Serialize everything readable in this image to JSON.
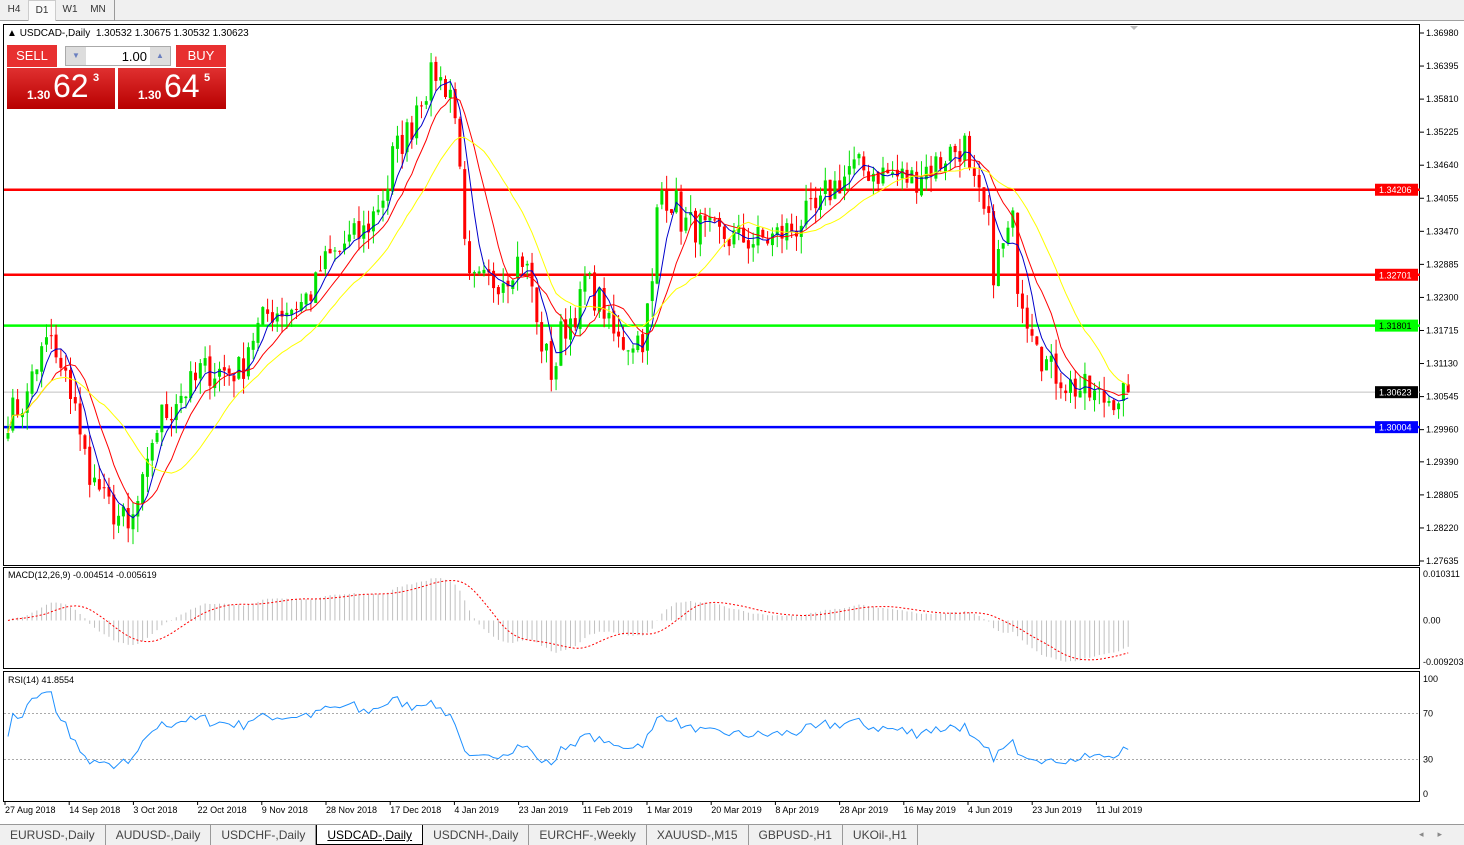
{
  "timeframes": [
    "H4",
    "D1",
    "W1",
    "MN"
  ],
  "active_timeframe": "D1",
  "chart": {
    "title": "USDCAD-,Daily",
    "ohlc": "1.30532 1.30675 1.30532 1.30623",
    "trade": {
      "sell_label": "SELL",
      "buy_label": "BUY",
      "lot": "1.00",
      "sell_prefix": "1.30",
      "sell_big": "62",
      "sell_sup": "3",
      "buy_prefix": "1.30",
      "buy_big": "64",
      "buy_sup": "5"
    }
  },
  "chart_data": {
    "type": "candlestick",
    "symbol": "USDCAD-",
    "timeframe": "Daily",
    "ylim": [
      1.27635,
      1.3698
    ],
    "price_ticks": [
      "1.36980",
      "1.36395",
      "1.35810",
      "1.35225",
      "1.34640",
      "1.34055",
      "1.33470",
      "1.32885",
      "1.32300",
      "1.31715",
      "1.31130",
      "1.30545",
      "1.29960",
      "1.29390",
      "1.28805",
      "1.28220",
      "1.27635"
    ],
    "current_price": "1.30623",
    "levels": [
      {
        "price": "1.34206",
        "color": "#ff0000"
      },
      {
        "price": "1.32701",
        "color": "#ff0000"
      },
      {
        "price": "1.31801",
        "color": "#00ff00"
      },
      {
        "price": "1.30004",
        "color": "#0000ff"
      }
    ],
    "moving_averages": [
      {
        "period": 5,
        "color": "#0000cc"
      },
      {
        "period": 10,
        "color": "#ff0000"
      },
      {
        "period": 20,
        "color": "#ffff00"
      }
    ],
    "date_labels": [
      "27 Aug 2018",
      "14 Sep 2018",
      "3 Oct 2018",
      "22 Oct 2018",
      "9 Nov 2018",
      "28 Nov 2018",
      "17 Dec 2018",
      "4 Jan 2019",
      "23 Jan 2019",
      "11 Feb 2019",
      "1 Mar 2019",
      "20 Mar 2019",
      "8 Apr 2019",
      "28 Apr 2019",
      "16 May 2019",
      "4 Jun 2019",
      "23 Jun 2019",
      "11 Jul 2019"
    ],
    "start_date": "2018-08-27",
    "end_date": "2019-07-18",
    "close_path": [
      [
        "2018-08-27",
        1.302
      ],
      [
        "2018-08-31",
        1.305
      ],
      [
        "2018-09-07",
        1.316
      ],
      [
        "2018-09-14",
        1.305
      ],
      [
        "2018-09-20",
        1.29
      ],
      [
        "2018-10-01",
        1.281
      ],
      [
        "2018-10-05",
        1.292
      ],
      [
        "2018-10-10",
        1.302
      ],
      [
        "2018-10-22",
        1.31
      ],
      [
        "2018-11-01",
        1.31
      ],
      [
        "2018-11-09",
        1.32
      ],
      [
        "2018-11-20",
        1.322
      ],
      [
        "2018-11-28",
        1.33
      ],
      [
        "2018-12-10",
        1.336
      ],
      [
        "2018-12-17",
        1.348
      ],
      [
        "2018-12-28",
        1.363
      ],
      [
        "2019-01-02",
        1.36
      ],
      [
        "2019-01-08",
        1.325
      ],
      [
        "2019-01-15",
        1.326
      ],
      [
        "2019-01-23",
        1.33
      ],
      [
        "2019-01-31",
        1.31
      ],
      [
        "2019-02-05",
        1.318
      ],
      [
        "2019-02-11",
        1.326
      ],
      [
        "2019-02-20",
        1.315
      ],
      [
        "2019-02-27",
        1.316
      ],
      [
        "2019-03-05",
        1.342
      ],
      [
        "2019-03-12",
        1.336
      ],
      [
        "2019-03-20",
        1.334
      ],
      [
        "2019-04-01",
        1.333
      ],
      [
        "2019-04-08",
        1.334
      ],
      [
        "2019-04-18",
        1.338
      ],
      [
        "2019-04-28",
        1.346
      ],
      [
        "2019-05-08",
        1.345
      ],
      [
        "2019-05-16",
        1.344
      ],
      [
        "2019-05-24",
        1.347
      ],
      [
        "2019-05-31",
        1.35
      ],
      [
        "2019-06-05",
        1.34
      ],
      [
        "2019-06-10",
        1.328
      ],
      [
        "2019-06-14",
        1.336
      ],
      [
        "2019-06-19",
        1.32
      ],
      [
        "2019-06-26",
        1.31
      ],
      [
        "2019-07-03",
        1.307
      ],
      [
        "2019-07-11",
        1.305
      ],
      [
        "2019-07-18",
        1.3062
      ]
    ],
    "macd": {
      "label": "MACD(12,26,9) -0.004514 -0.005619",
      "ticks": [
        "0.010311",
        "0.00",
        "-0.009203"
      ],
      "ylim": [
        -0.009203,
        0.010311
      ],
      "histogram_color": "#c0c0c0",
      "signal_color": "#ff0000"
    },
    "rsi": {
      "label": "RSI(14) 41.8554",
      "ticks": [
        "100",
        "70",
        "30",
        "0"
      ],
      "levels": [
        70,
        30
      ],
      "color": "#1e90ff"
    }
  },
  "tabs": [
    "EURUSD-,Daily",
    "AUDUSD-,Daily",
    "USDCHF-,Daily",
    "USDCAD-,Daily",
    "USDCNH-,Daily",
    "EURCHF-,Weekly",
    "XAUUSD-,M15",
    "GBPUSD-,H1",
    "UKOil-,H1"
  ],
  "active_tab": "USDCAD-,Daily",
  "tab_nav": [
    "◂",
    "▸"
  ]
}
